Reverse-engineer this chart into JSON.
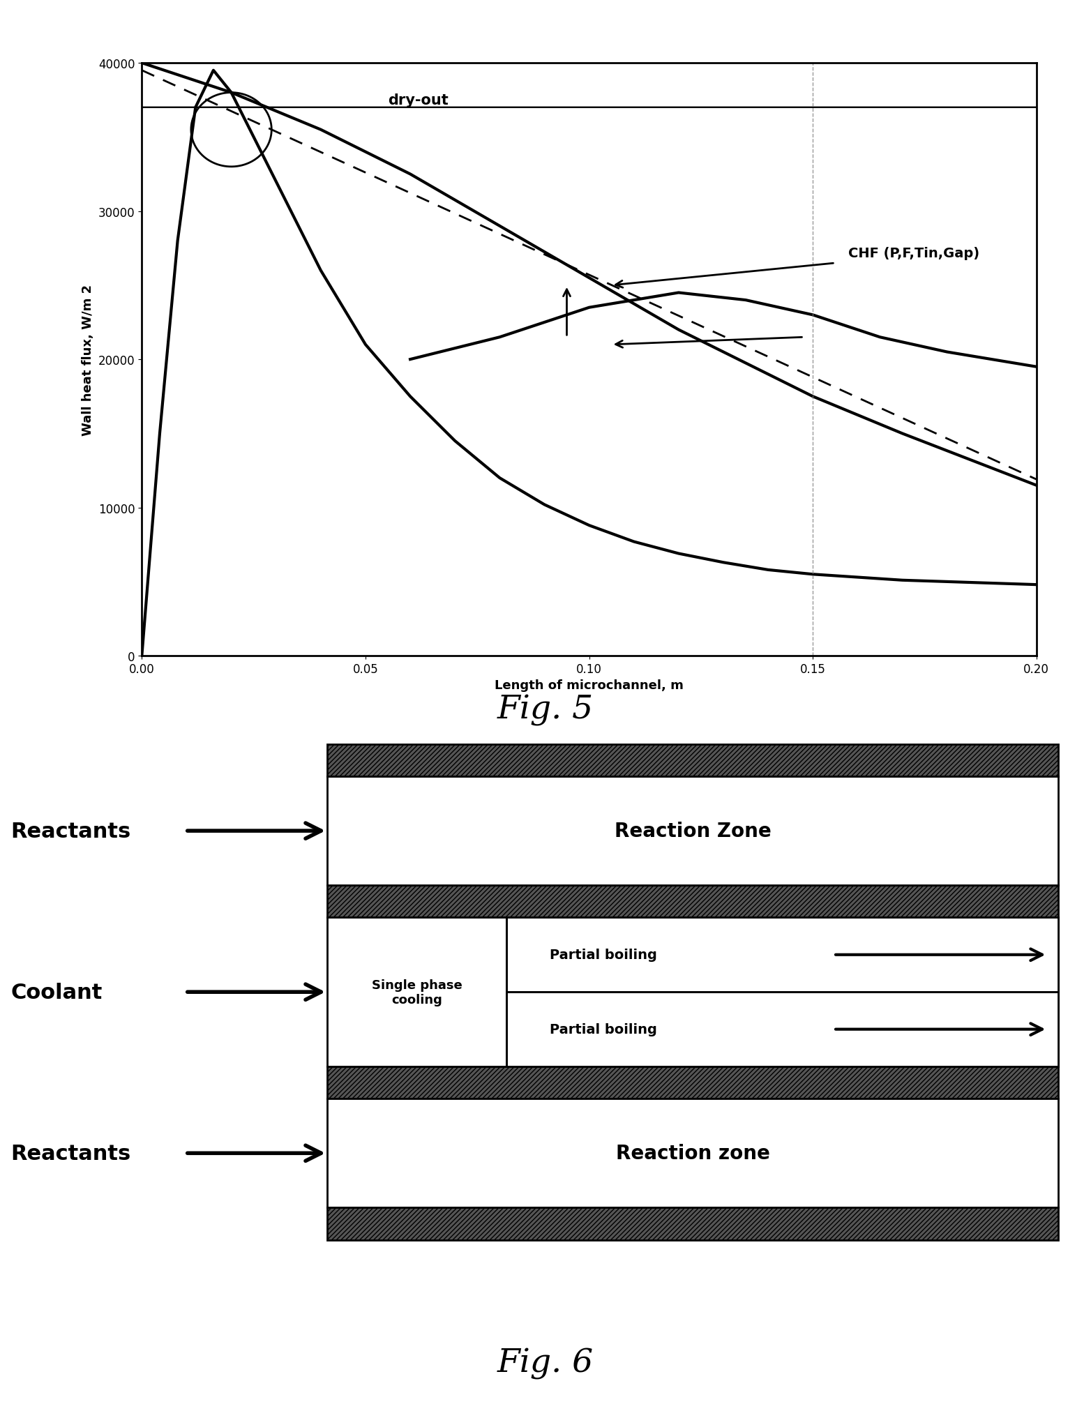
{
  "fig5": {
    "xlabel": "Length of microchannel, m",
    "ylabel": "Wall heat flux, W/m 2",
    "xlim": [
      0,
      0.2
    ],
    "ylim": [
      0,
      40000
    ],
    "xticks": [
      0,
      0.05,
      0.1,
      0.15,
      0.2
    ],
    "yticks": [
      0,
      10000,
      20000,
      30000,
      40000
    ],
    "vline_x": 0.15,
    "dryout_label": "dry-out",
    "chf_label": "CHF (P,F,Tin,Gap)",
    "fig_label": "Fig. 5"
  },
  "fig6": {
    "fig_label": "Fig. 6",
    "reactants_top_label": "Reactants",
    "reactants_bottom_label": "Reactants",
    "coolant_label": "Coolant",
    "reaction_zone_top": "Reaction Zone",
    "reaction_zone_bottom": "Reaction zone",
    "single_phase_label": "Single phase\ncooling",
    "partial_boiling_top": "Partial boiling",
    "partial_boiling_bottom": "Partial boiling"
  }
}
